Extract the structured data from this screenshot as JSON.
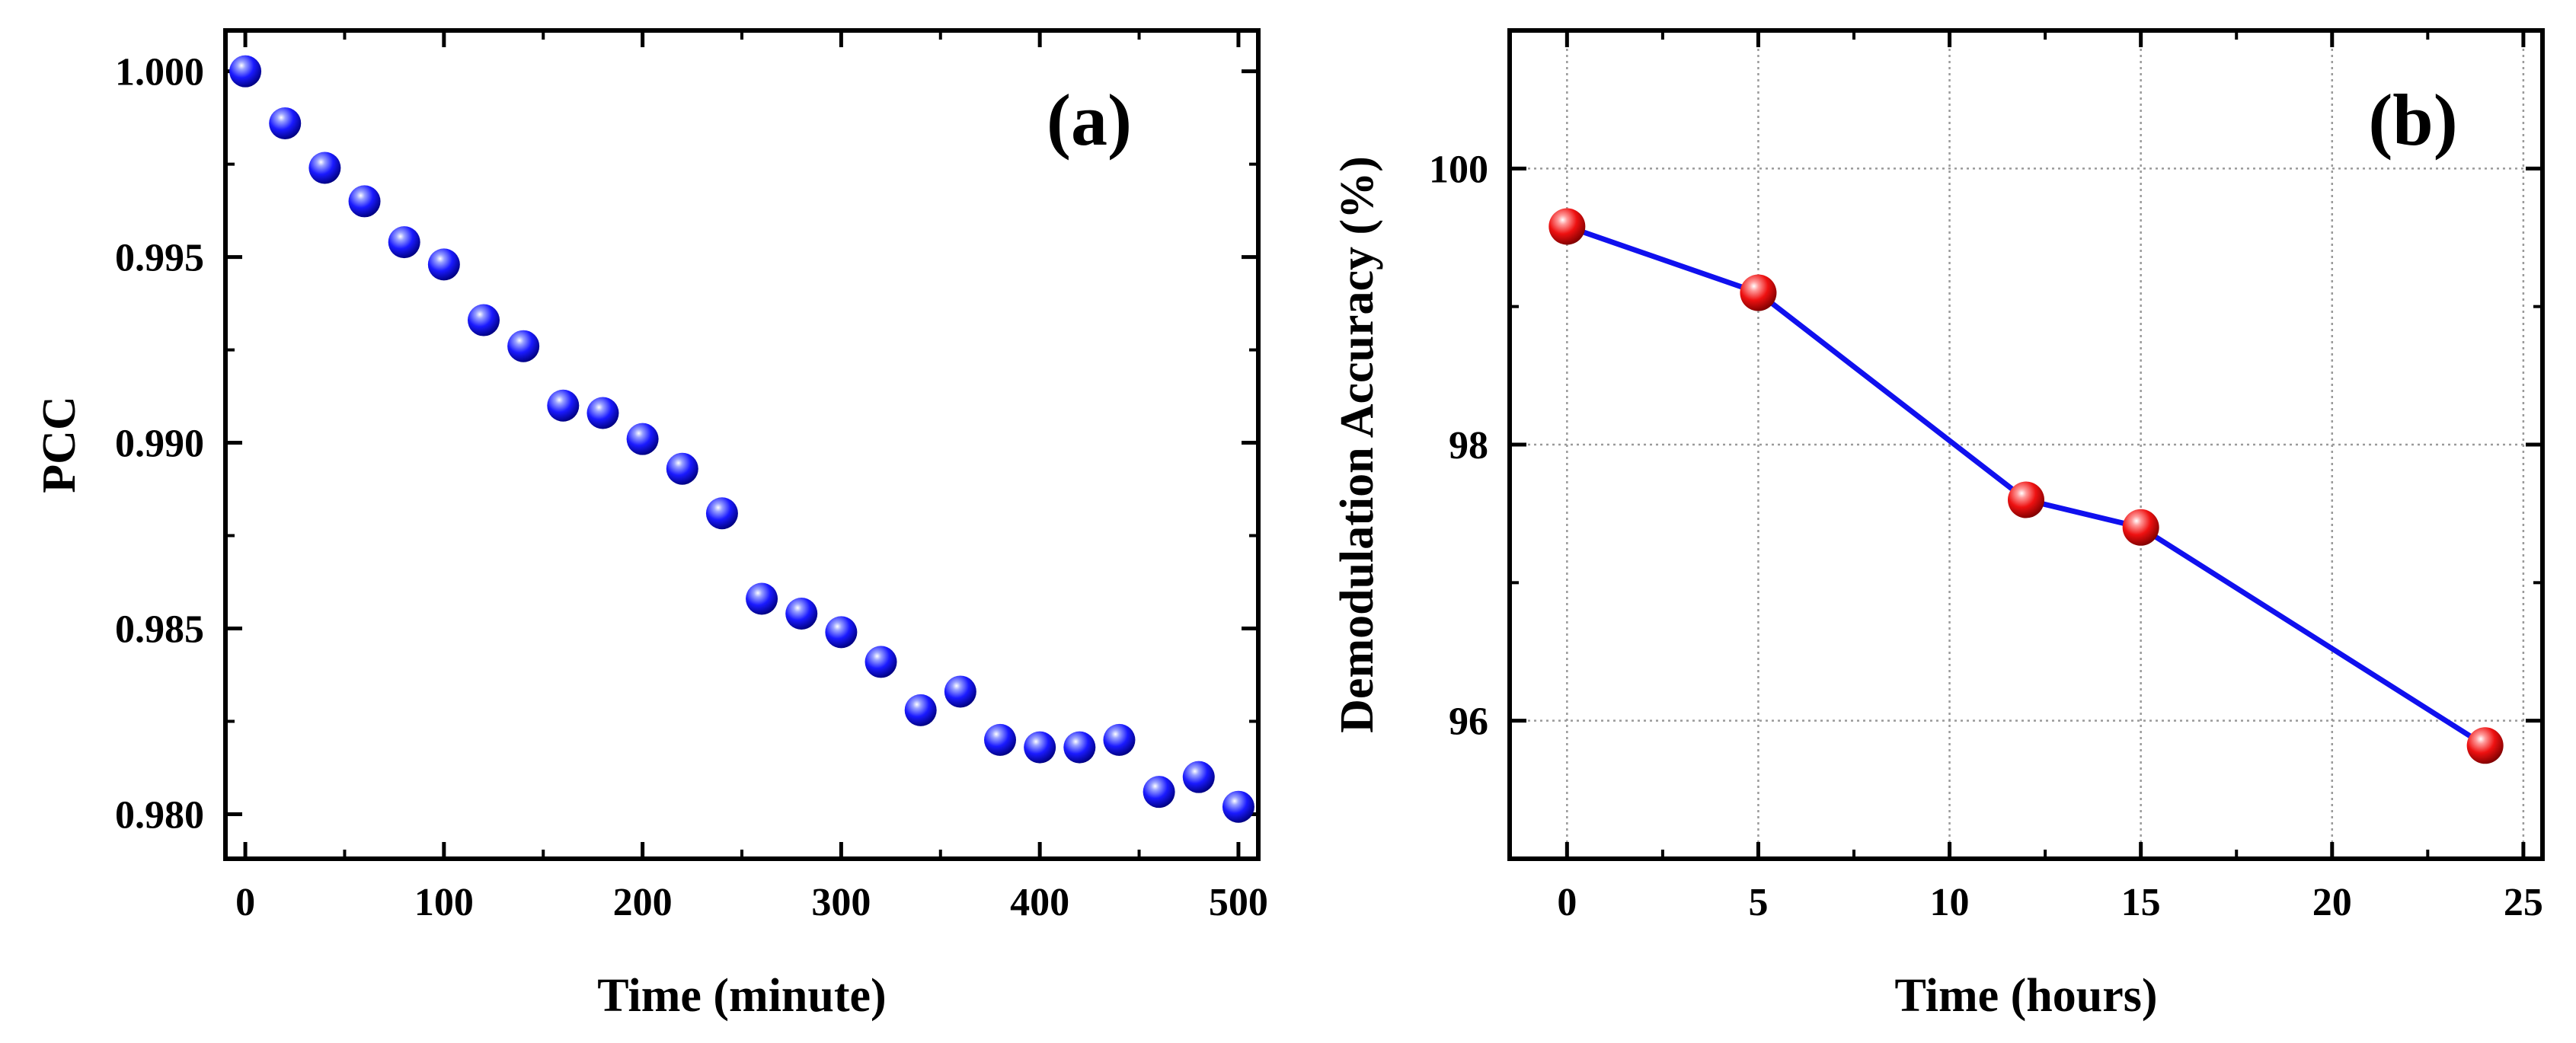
{
  "chart_data": [
    {
      "type": "scatter",
      "panel_label": "(a)",
      "xlabel": "Time (minute)",
      "ylabel": "PCC",
      "xlim": [
        -10,
        510
      ],
      "ylim": [
        0.9788,
        1.0011
      ],
      "xticks": [
        0,
        100,
        200,
        300,
        400,
        500
      ],
      "xtick_labels": [
        "0",
        "100",
        "200",
        "300",
        "400",
        "500"
      ],
      "yticks": [
        0.98,
        0.985,
        0.99,
        0.995,
        1.0
      ],
      "ytick_labels": [
        "0.980",
        "0.985",
        "0.990",
        "0.995",
        "1.000"
      ],
      "grid": false,
      "marker_color": "#1a1aff",
      "series": [
        {
          "name": "PCC",
          "x": [
            0,
            20,
            40,
            60,
            80,
            100,
            120,
            140,
            160,
            180,
            200,
            220,
            240,
            260,
            280,
            300,
            320,
            340,
            360,
            380,
            400,
            420,
            440,
            460,
            480,
            500
          ],
          "y": [
            1.0,
            0.9986,
            0.9974,
            0.9965,
            0.9954,
            0.9948,
            0.9933,
            0.9926,
            0.991,
            0.9908,
            0.9901,
            0.9893,
            0.9881,
            0.9858,
            0.9854,
            0.9849,
            0.9841,
            0.9828,
            0.9833,
            0.982,
            0.9818,
            0.9818,
            0.982,
            0.9806,
            0.981,
            0.9802
          ]
        }
      ]
    },
    {
      "type": "line",
      "panel_label": "(b)",
      "xlabel": "Time (hours)",
      "ylabel": "Demodulation Accuracy (%)",
      "xlim": [
        -1.5,
        25.5
      ],
      "ylim": [
        95,
        101
      ],
      "xticks": [
        0,
        5,
        10,
        15,
        20,
        25
      ],
      "xtick_labels": [
        "0",
        "5",
        "10",
        "15",
        "20",
        "25"
      ],
      "yticks": [
        96,
        98,
        100
      ],
      "ytick_labels": [
        "96",
        "98",
        "100"
      ],
      "grid": true,
      "line_color": "#1010ee",
      "marker_color": "#ee1111",
      "series": [
        {
          "name": "Demodulation Accuracy",
          "x": [
            0,
            5,
            12,
            15,
            24
          ],
          "y": [
            99.58,
            99.1,
            97.6,
            97.4,
            95.82
          ]
        }
      ]
    }
  ]
}
